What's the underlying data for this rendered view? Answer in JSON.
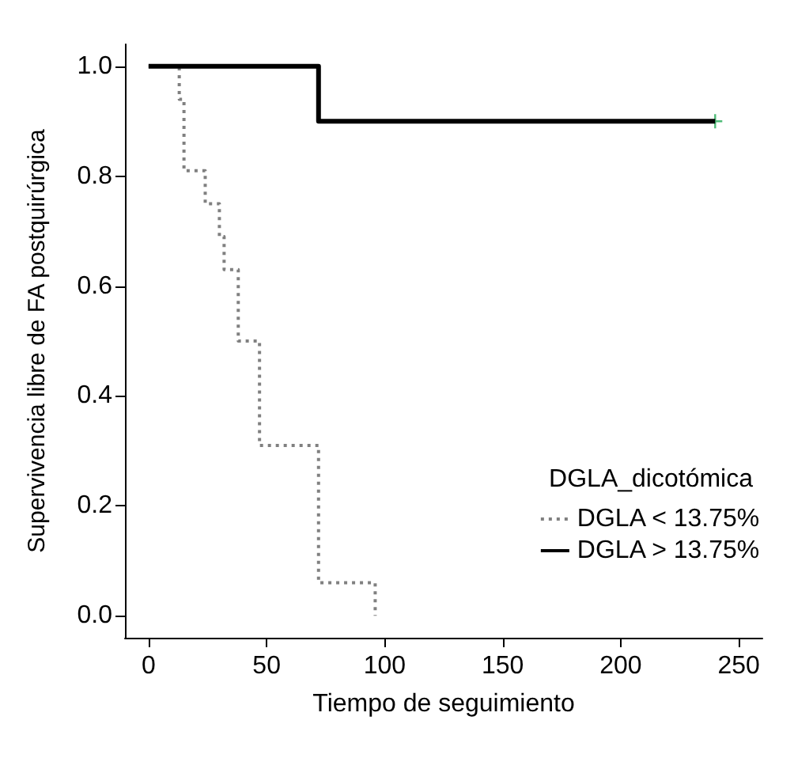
{
  "chart_data": {
    "type": "step",
    "xlabel": "Tiempo de seguimiento",
    "ylabel": "Supervivencia libre de FA postquirúrgica",
    "legend_title": "DGLA_dicotómica",
    "legend": "bottom right",
    "grid": false,
    "xlim": [
      -10,
      260
    ],
    "xticks": [
      0,
      50,
      100,
      150,
      200,
      250
    ],
    "ylim": [
      -0.04,
      1.04
    ],
    "yticks": [
      {
        "value": 0,
        "label": "0.0"
      },
      0.2,
      0.4,
      0.6,
      0.8,
      {
        "value": 1,
        "label": "1.0"
      }
    ],
    "series": [
      {
        "name": "DGLA < 13.75%",
        "color": "#808080",
        "line_style": "dotted",
        "x": [
          0,
          13,
          15,
          24,
          30,
          32,
          38,
          47,
          72,
          96
        ],
        "values": [
          1,
          0.94,
          0.81,
          0.75,
          0.69,
          0.63,
          0.5,
          0.31,
          0.06,
          0
        ]
      },
      {
        "name": "DGLA > 13.75%",
        "color": "#000000",
        "line_style": "solid",
        "x": [
          0,
          72,
          240
        ],
        "values": [
          1,
          0.9,
          0.9
        ]
      },
      {
        "type": "scatter",
        "marker": "cross",
        "color": "#22aa55",
        "x": [
          240
        ],
        "values": [
          0.9
        ]
      }
    ]
  }
}
